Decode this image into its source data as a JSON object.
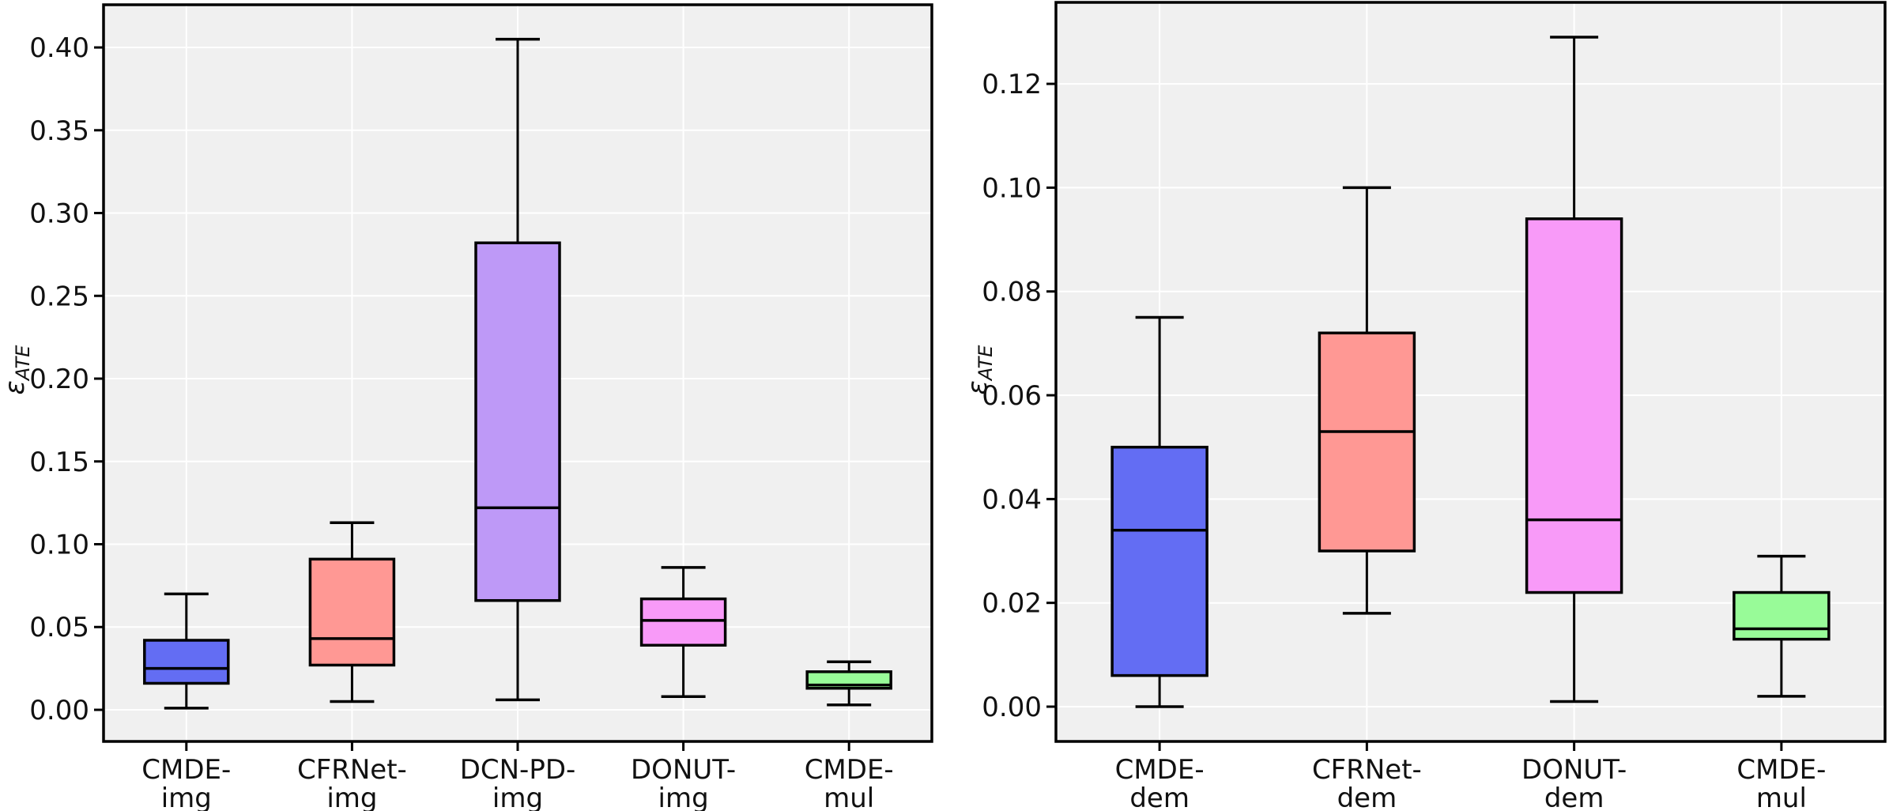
{
  "figure": {
    "background": "#ffffff",
    "plot_background": "#f0f0f0",
    "grid_color": "#ffffff",
    "spine_color": "#000000",
    "box_edge_color": "#000000",
    "tick_label_color": "#111111"
  },
  "chart_data": [
    {
      "type": "box",
      "title": "",
      "xlabel": "",
      "ylabel": "ε",
      "ylabel_subscript": "ATE",
      "grid": true,
      "ylim": [
        -0.0191,
        0.4258
      ],
      "yticks": [
        0.0,
        0.05,
        0.1,
        0.15,
        0.2,
        0.25,
        0.3,
        0.35,
        0.4
      ],
      "ytick_labels": [
        "0.00",
        "0.05",
        "0.10",
        "0.15",
        "0.20",
        "0.25",
        "0.30",
        "0.35",
        "0.40"
      ],
      "categories": [
        "CMDE-img",
        "CFRNet-img",
        "DCN-PD-img",
        "DONUT-img",
        "CMDE-mul"
      ],
      "category_labels": [
        [
          "CMDE-",
          "img"
        ],
        [
          "CFRNet-",
          "img"
        ],
        [
          "DCN-PD-",
          "img"
        ],
        [
          "DONUT-",
          "img"
        ],
        [
          "CMDE-",
          "mul"
        ]
      ],
      "boxes": [
        {
          "name": "CMDE-img",
          "color": "#636DF3",
          "whislo": 0.001,
          "q1": 0.016,
          "med": 0.025,
          "q3": 0.042,
          "whishi": 0.07
        },
        {
          "name": "CFRNet-img",
          "color": "#FF9894",
          "whislo": 0.005,
          "q1": 0.027,
          "med": 0.043,
          "q3": 0.091,
          "whishi": 0.113
        },
        {
          "name": "DCN-PD-img",
          "color": "#BE99F7",
          "whislo": 0.006,
          "q1": 0.066,
          "med": 0.122,
          "q3": 0.282,
          "whishi": 0.405
        },
        {
          "name": "DONUT-img",
          "color": "#F89AF8",
          "whislo": 0.008,
          "q1": 0.039,
          "med": 0.054,
          "q3": 0.067,
          "whishi": 0.086
        },
        {
          "name": "CMDE-mul",
          "color": "#98FB98",
          "whislo": 0.003,
          "q1": 0.013,
          "med": 0.015,
          "q3": 0.023,
          "whishi": 0.029
        }
      ]
    },
    {
      "type": "box",
      "title": "",
      "xlabel": "",
      "ylabel": "ε",
      "ylabel_subscript": "ATE",
      "grid": true,
      "ylim": [
        -0.0067,
        0.1357
      ],
      "yticks": [
        0.0,
        0.02,
        0.04,
        0.06,
        0.08,
        0.1,
        0.12
      ],
      "ytick_labels": [
        "0.00",
        "0.02",
        "0.04",
        "0.06",
        "0.08",
        "0.10",
        "0.12"
      ],
      "categories": [
        "CMDE-dem",
        "CFRNet-dem",
        "DONUT-dem",
        "CMDE-mul"
      ],
      "category_labels": [
        [
          "CMDE-",
          "dem"
        ],
        [
          "CFRNet-",
          "dem"
        ],
        [
          "DONUT-",
          "dem"
        ],
        [
          "CMDE-",
          "mul"
        ]
      ],
      "boxes": [
        {
          "name": "CMDE-dem",
          "color": "#636DF3",
          "whislo": 0.0,
          "q1": 0.006,
          "med": 0.034,
          "q3": 0.05,
          "whishi": 0.075
        },
        {
          "name": "CFRNet-dem",
          "color": "#FF9894",
          "whislo": 0.018,
          "q1": 0.03,
          "med": 0.053,
          "q3": 0.072,
          "whishi": 0.1
        },
        {
          "name": "DONUT-dem",
          "color": "#F89AF8",
          "whislo": 0.001,
          "q1": 0.022,
          "med": 0.036,
          "q3": 0.094,
          "whishi": 0.129
        },
        {
          "name": "CMDE-mul",
          "color": "#98FB98",
          "whislo": 0.002,
          "q1": 0.013,
          "med": 0.015,
          "q3": 0.022,
          "whishi": 0.029
        }
      ]
    }
  ]
}
